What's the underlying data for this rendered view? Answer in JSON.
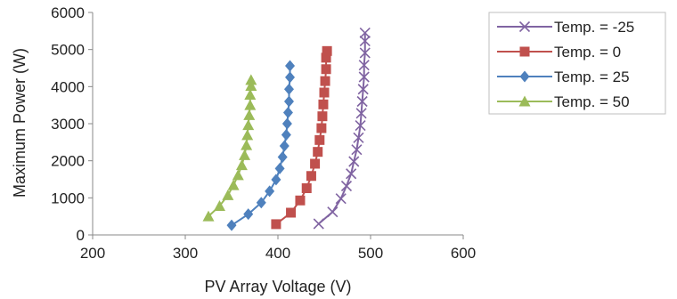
{
  "chart_data": {
    "type": "scatter",
    "xlabel": "PV Array Voltage (V)",
    "ylabel": "Maximum Power (W)",
    "xlim": [
      200,
      600
    ],
    "ylim": [
      0,
      6000
    ],
    "xticks": [
      "200",
      "300",
      "400",
      "500",
      "600"
    ],
    "yticks": [
      "0",
      "1000",
      "2000",
      "3000",
      "4000",
      "5000",
      "6000"
    ],
    "grid": false,
    "legend": "right",
    "series": [
      {
        "name": "Temp. = -25",
        "color": "#8064A2",
        "marker": "x",
        "points": [
          [
            444,
            300
          ],
          [
            459,
            620
          ],
          [
            468,
            980
          ],
          [
            474,
            1320
          ],
          [
            479,
            1650
          ],
          [
            482,
            1980
          ],
          [
            485,
            2300
          ],
          [
            487,
            2620
          ],
          [
            489,
            2950
          ],
          [
            490,
            3280
          ],
          [
            491,
            3600
          ],
          [
            492,
            3930
          ],
          [
            493,
            4260
          ],
          [
            493,
            4580
          ],
          [
            494,
            4910
          ],
          [
            494,
            5230
          ],
          [
            494,
            5450
          ]
        ]
      },
      {
        "name": "Temp. = 0",
        "color": "#C0504D",
        "marker": "square",
        "points": [
          [
            398,
            290
          ],
          [
            414,
            600
          ],
          [
            424,
            930
          ],
          [
            431,
            1260
          ],
          [
            436,
            1590
          ],
          [
            440,
            1920
          ],
          [
            443,
            2240
          ],
          [
            445,
            2560
          ],
          [
            447,
            2880
          ],
          [
            448,
            3200
          ],
          [
            449,
            3520
          ],
          [
            450,
            3840
          ],
          [
            451,
            4150
          ],
          [
            452,
            4470
          ],
          [
            452,
            4780
          ],
          [
            453,
            4960
          ]
        ]
      },
      {
        "name": "Temp. = 25",
        "color": "#4F81BD",
        "marker": "diamond",
        "points": [
          [
            350,
            260
          ],
          [
            368,
            560
          ],
          [
            382,
            870
          ],
          [
            391,
            1180
          ],
          [
            398,
            1490
          ],
          [
            402,
            1790
          ],
          [
            405,
            2100
          ],
          [
            407,
            2400
          ],
          [
            409,
            2700
          ],
          [
            410,
            3000
          ],
          [
            411,
            3300
          ],
          [
            412,
            3600
          ],
          [
            412,
            3930
          ],
          [
            413,
            4250
          ],
          [
            413,
            4560
          ]
        ]
      },
      {
        "name": "Temp. = 50",
        "color": "#9BBB59",
        "marker": "triangle",
        "points": [
          [
            325,
            500
          ],
          [
            337,
            780
          ],
          [
            346,
            1070
          ],
          [
            352,
            1340
          ],
          [
            357,
            1610
          ],
          [
            361,
            1880
          ],
          [
            364,
            2150
          ],
          [
            366,
            2420
          ],
          [
            367,
            2690
          ],
          [
            368,
            2960
          ],
          [
            369,
            3230
          ],
          [
            370,
            3500
          ],
          [
            370,
            3780
          ],
          [
            371,
            4020
          ],
          [
            371,
            4180
          ]
        ]
      }
    ]
  }
}
